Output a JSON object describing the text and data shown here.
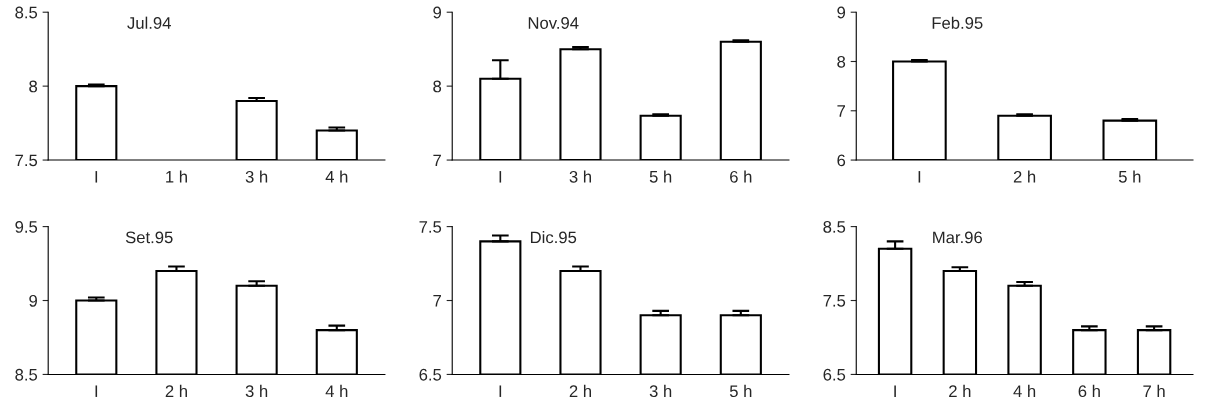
{
  "chart_data": [
    {
      "type": "bar",
      "title": "Jul.94",
      "categories": [
        "I",
        "1 h",
        "3 h",
        "4 h"
      ],
      "values": [
        8.0,
        null,
        7.9,
        7.7
      ],
      "errors": [
        [
          8.0,
          8.01
        ],
        null,
        [
          7.9,
          7.92
        ],
        [
          7.7,
          7.72
        ]
      ],
      "color": "#ffffff",
      "ylim": [
        7.5,
        8.5
      ],
      "yticks": [
        7.5,
        8,
        8.5
      ],
      "grid": false
    },
    {
      "type": "bar",
      "title": "Nov.94",
      "categories": [
        "I",
        "3 h",
        "5 h",
        "6 h"
      ],
      "values": [
        8.1,
        8.5,
        7.6,
        8.6
      ],
      "errors": [
        [
          8.1,
          8.35
        ],
        [
          8.5,
          8.53
        ],
        [
          7.6,
          7.62
        ],
        [
          8.6,
          8.62
        ]
      ],
      "color": "#ffffff",
      "ylim": [
        7,
        9
      ],
      "yticks": [
        7,
        8,
        9
      ],
      "grid": false
    },
    {
      "type": "bar",
      "title": "Feb.95",
      "categories": [
        "I",
        "2 h",
        "5 h"
      ],
      "values": [
        8.0,
        6.9,
        6.8
      ],
      "errors": [
        [
          8.0,
          8.03
        ],
        [
          6.9,
          6.93
        ],
        [
          6.8,
          6.83
        ]
      ],
      "color": "#ffffff",
      "ylim": [
        6,
        9
      ],
      "yticks": [
        6,
        7,
        8,
        9
      ],
      "grid": false
    },
    {
      "type": "bar",
      "title": "Set.95",
      "categories": [
        "I",
        "2 h",
        "3 h",
        "4 h"
      ],
      "values": [
        9.0,
        9.2,
        9.1,
        8.8
      ],
      "errors": [
        [
          9.0,
          9.02
        ],
        [
          9.2,
          9.23
        ],
        [
          9.1,
          9.13
        ],
        [
          8.8,
          8.83
        ]
      ],
      "color": "#ffffff",
      "ylim": [
        8.5,
        9.5
      ],
      "yticks": [
        8.5,
        9,
        9.5
      ],
      "grid": false
    },
    {
      "type": "bar",
      "title": "Dic.95",
      "categories": [
        "I",
        "2 h",
        "3 h",
        "5 h"
      ],
      "values": [
        7.4,
        7.2,
        6.9,
        6.9
      ],
      "errors": [
        [
          7.4,
          7.44
        ],
        [
          7.2,
          7.23
        ],
        [
          6.9,
          6.93
        ],
        [
          6.9,
          6.93
        ]
      ],
      "color": "#ffffff",
      "ylim": [
        6.5,
        7.5
      ],
      "yticks": [
        6.5,
        7,
        7.5
      ],
      "grid": false
    },
    {
      "type": "bar",
      "title": "Mar.96",
      "categories": [
        "I",
        "2 h",
        "4 h",
        "6 h",
        "7 h"
      ],
      "values": [
        8.2,
        7.9,
        7.7,
        7.1,
        7.1
      ],
      "errors": [
        [
          8.2,
          8.3
        ],
        [
          7.9,
          7.95
        ],
        [
          7.7,
          7.75
        ],
        [
          7.1,
          7.15
        ],
        [
          7.1,
          7.15
        ]
      ],
      "color": "#ffffff",
      "ylim": [
        6.5,
        8.5
      ],
      "yticks": [
        6.5,
        7.5,
        8.5
      ],
      "grid": false
    }
  ]
}
